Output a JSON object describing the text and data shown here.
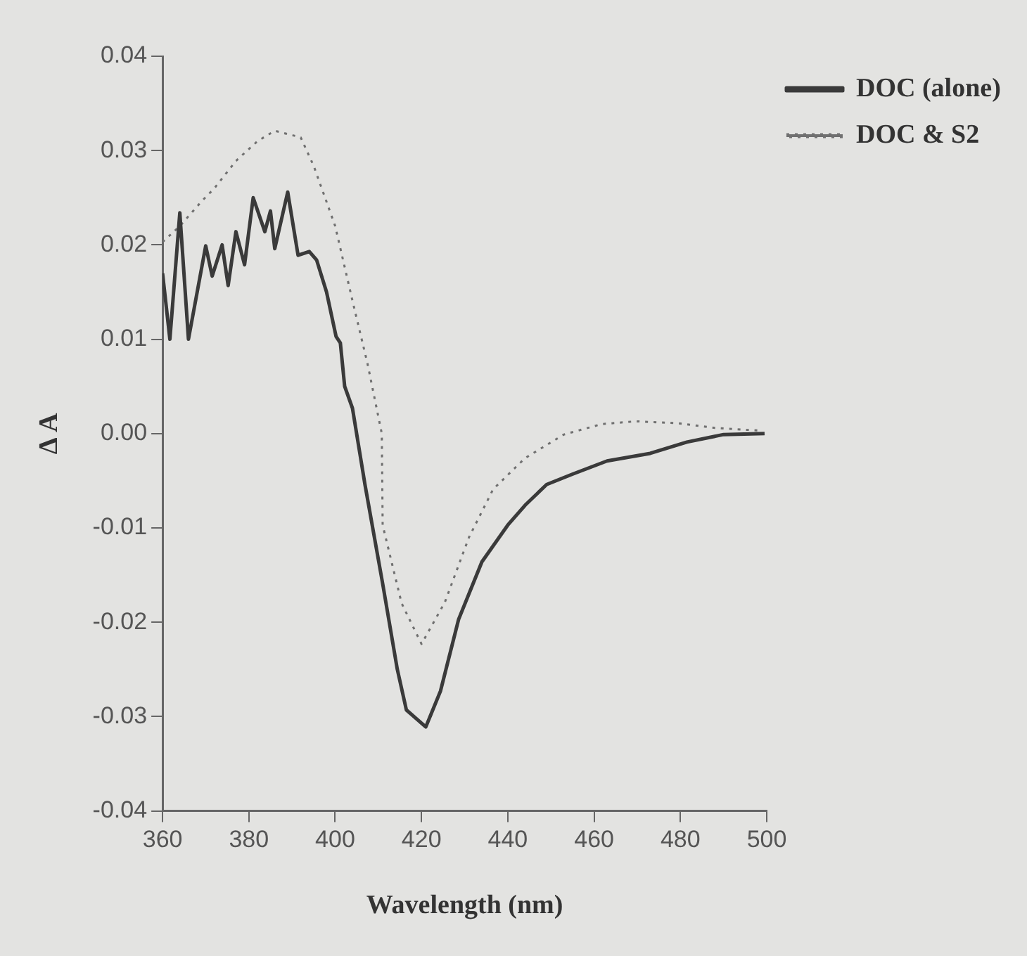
{
  "chart_data": {
    "type": "line",
    "xlabel": "Wavelength (nm)",
    "ylabel": "Δ A",
    "xlim": [
      360,
      500
    ],
    "xticks": [
      360,
      380,
      400,
      420,
      440,
      460,
      480,
      500
    ],
    "ylim": [
      -0.04,
      0.04
    ],
    "yticks": [
      -0.04,
      -0.03,
      -0.02,
      -0.01,
      {
        "value": 0,
        "label": "0.00"
      },
      0.01,
      0.02,
      0.03,
      0.04
    ],
    "grid": false,
    "legend": "top right",
    "marker": "none",
    "series": [
      {
        "name": "DOC (alone)",
        "color": "#3a3a3a",
        "line_style": "solid",
        "x": [
          360,
          361.7,
          364,
          366,
          370,
          371.5,
          373.8,
          375.2,
          377,
          379,
          381,
          383.7,
          385,
          386,
          389,
          391.4,
          394,
          395.7,
          398,
          400.2,
          401.2,
          402.2,
          404,
          406.9,
          411,
          414.4,
          416.5,
          421,
          424.4,
          428.6,
          434,
          440,
          444,
          449,
          455,
          463,
          473,
          481.5,
          490,
          499.5
        ],
        "values": [
          0.017,
          0.01,
          0.0234,
          0.01,
          0.0199,
          0.0167,
          0.02,
          0.0157,
          0.0214,
          0.0179,
          0.025,
          0.0214,
          0.0236,
          0.0196,
          0.0256,
          0.0189,
          0.0193,
          0.0184,
          0.015,
          0.0103,
          0.0096,
          0.005,
          0.0027,
          -0.0054,
          -0.0159,
          -0.025,
          -0.0293,
          -0.0311,
          -0.0273,
          -0.0197,
          -0.0136,
          -0.0097,
          -0.0076,
          -0.0054,
          -0.0043,
          -0.0029,
          -0.0021,
          -0.0009,
          -0.0001,
          0.0
        ]
      },
      {
        "name": "DOC & S2",
        "color": "#707070",
        "line_style": "dotted",
        "x": [
          360,
          364,
          369,
          372,
          377,
          382,
          386,
          392,
          395,
          400,
          404,
          407.5,
          410.8,
          411,
          415.4,
          420,
          425.4,
          431,
          436.6,
          444,
          453,
          461.7,
          469.6,
          479.5,
          488,
          499
        ],
        "values": [
          0.0203,
          0.022,
          0.0246,
          0.026,
          0.0289,
          0.031,
          0.0321,
          0.0314,
          0.0284,
          0.022,
          0.0141,
          0.0074,
          0.0,
          -0.0097,
          -0.018,
          -0.0223,
          -0.0179,
          -0.011,
          -0.0059,
          -0.0026,
          -0.0001,
          0.001,
          0.0013,
          0.0011,
          0.0006,
          0.0003
        ]
      }
    ]
  }
}
